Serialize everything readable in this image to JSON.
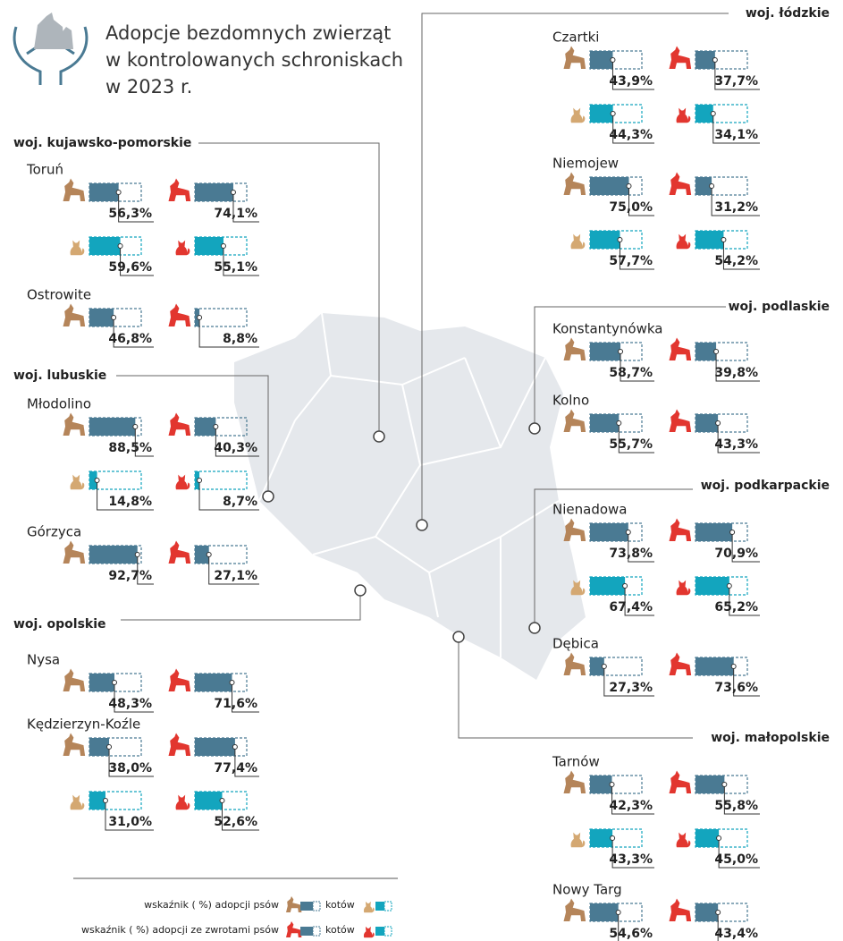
{
  "header": {
    "title_lines": [
      "Adopcje bezdomnych zwierząt",
      "w kontrolowanych schroniskach",
      "w 2023 r."
    ]
  },
  "regions": [
    {
      "name": "woj. kujawsko-pomorskie",
      "shelters": [
        {
          "name": "Toruń",
          "dogs": {
            "value": 56.3,
            "label": "56,3%"
          },
          "dogs_returns": {
            "value": 74.1,
            "label": "74,1%"
          },
          "cats": {
            "value": 59.6,
            "label": "59,6%"
          },
          "cats_returns": {
            "value": 55.1,
            "label": "55,1%"
          }
        },
        {
          "name": "Ostrowite",
          "dogs": {
            "value": 46.8,
            "label": "46,8%"
          },
          "dogs_returns": {
            "value": 8.8,
            "label": "8,8%"
          }
        }
      ]
    },
    {
      "name": "woj. lubuskie",
      "shelters": [
        {
          "name": "Młodolino",
          "dogs": {
            "value": 88.5,
            "label": "88,5%"
          },
          "dogs_returns": {
            "value": 40.3,
            "label": "40,3%"
          },
          "cats": {
            "value": 14.8,
            "label": "14,8%"
          },
          "cats_returns": {
            "value": 8.7,
            "label": "8,7%"
          }
        },
        {
          "name": "Górzyca",
          "dogs": {
            "value": 92.7,
            "label": "92,7%"
          },
          "dogs_returns": {
            "value": 27.1,
            "label": "27,1%"
          }
        }
      ]
    },
    {
      "name": "woj. opolskie",
      "shelters": [
        {
          "name": "Nysa",
          "dogs": {
            "value": 48.3,
            "label": "48,3%"
          },
          "dogs_returns": {
            "value": 71.6,
            "label": "71,6%"
          }
        },
        {
          "name": "Kędzierzyn-Koźle",
          "dogs": {
            "value": 38.0,
            "label": "38,0%"
          },
          "dogs_returns": {
            "value": 77.4,
            "label": "77,4%"
          },
          "cats": {
            "value": 31.0,
            "label": "31,0%"
          },
          "cats_returns": {
            "value": 52.6,
            "label": "52,6%"
          }
        }
      ]
    },
    {
      "name": "woj. łódzkie",
      "shelters": [
        {
          "name": "Czartki",
          "dogs": {
            "value": 43.9,
            "label": "43,9%"
          },
          "dogs_returns": {
            "value": 37.7,
            "label": "37,7%"
          },
          "cats": {
            "value": 44.3,
            "label": "44,3%"
          },
          "cats_returns": {
            "value": 34.1,
            "label": "34,1%"
          }
        },
        {
          "name": "Niemojew",
          "dogs": {
            "value": 75.0,
            "label": "75,0%"
          },
          "dogs_returns": {
            "value": 31.2,
            "label": "31,2%"
          },
          "cats": {
            "value": 57.7,
            "label": "57,7%"
          },
          "cats_returns": {
            "value": 54.2,
            "label": "54,2%"
          }
        }
      ]
    },
    {
      "name": "woj. podlaskie",
      "shelters": [
        {
          "name": "Konstantynówka",
          "dogs": {
            "value": 58.7,
            "label": "58,7%"
          },
          "dogs_returns": {
            "value": 39.8,
            "label": "39,8%"
          }
        },
        {
          "name": "Kolno",
          "dogs": {
            "value": 55.7,
            "label": "55,7%"
          },
          "dogs_returns": {
            "value": 43.3,
            "label": "43,3%"
          }
        }
      ]
    },
    {
      "name": "woj. podkarpackie",
      "shelters": [
        {
          "name": "Nienadowa",
          "dogs": {
            "value": 73.8,
            "label": "73,8%"
          },
          "dogs_returns": {
            "value": 70.9,
            "label": "70,9%"
          },
          "cats": {
            "value": 67.4,
            "label": "67,4%"
          },
          "cats_returns": {
            "value": 65.2,
            "label": "65,2%"
          }
        },
        {
          "name": "Dębica",
          "dogs": {
            "value": 27.3,
            "label": "27,3%"
          },
          "dogs_returns": {
            "value": 73.6,
            "label": "73,6%"
          }
        }
      ]
    },
    {
      "name": "woj. małopolskie",
      "shelters": [
        {
          "name": "Tarnów",
          "dogs": {
            "value": 42.3,
            "label": "42,3%"
          },
          "dogs_returns": {
            "value": 55.8,
            "label": "55,8%"
          },
          "cats": {
            "value": 43.3,
            "label": "43,3%"
          },
          "cats_returns": {
            "value": 45.0,
            "label": "45,0%"
          }
        },
        {
          "name": "Nowy Targ",
          "dogs": {
            "value": 54.6,
            "label": "54,6%"
          },
          "dogs_returns": {
            "value": 43.4,
            "label": "43,4%"
          }
        }
      ]
    }
  ],
  "legend": [
    {
      "label": "wskaźnik ( %) adopcji psów",
      "cats_label": "kotów"
    },
    {
      "label": "wskaźnik ( %) adopcji ze zwrotami psów",
      "cats_label": "kotów"
    }
  ]
}
